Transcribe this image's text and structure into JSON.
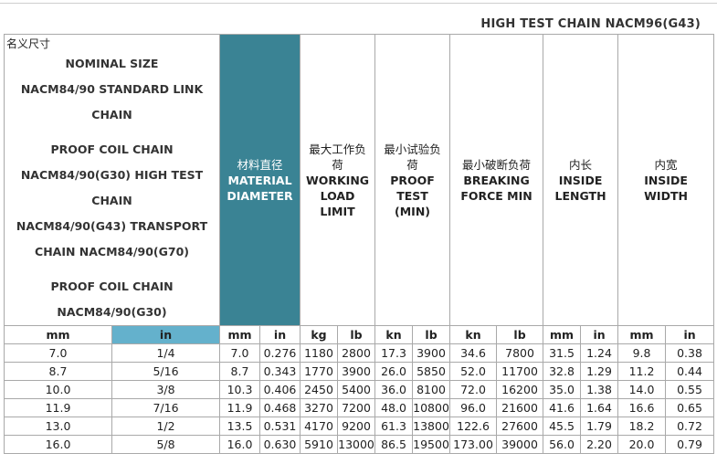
{
  "title": "HIGH TEST CHAIN NACM96(G43)",
  "name_header": {
    "cn": "名义尺寸",
    "lines": [
      "NOMINAL SIZE",
      "NACM84/90 STANDARD LINK",
      "CHAIN",
      "",
      "PROOF COIL CHAIN",
      "NACM84/90(G30)   HIGH TEST",
      "CHAIN",
      "NACM84/90(G43)   TRANSPORT",
      "CHAIN NACM84/90(G70)",
      "",
      "PROOF COIL CHAIN",
      "NACM84/90(G30)"
    ]
  },
  "columns": [
    {
      "cn": "材料直径",
      "en": [
        "MATERIAL",
        "DIAMETER"
      ]
    },
    {
      "cn": "最大工作负荷",
      "en": [
        "WORKING",
        "LOAD",
        "LIMIT"
      ]
    },
    {
      "cn": "最小试验负荷",
      "en": [
        "PROOF",
        "TEST",
        "(MIN)"
      ]
    },
    {
      "cn": "最小破断负荷",
      "en": [
        "BREAKING",
        "FORCE MIN"
      ]
    },
    {
      "cn": "内长",
      "en": [
        "INSIDE",
        "LENGTH"
      ]
    },
    {
      "cn": "内宽",
      "en": [
        "INSIDE",
        "WIDTH"
      ]
    }
  ],
  "units": [
    "mm",
    "in",
    "mm",
    "in",
    "kg",
    "lb",
    "kn",
    "lb",
    "kn",
    "lb",
    "mm",
    "in",
    "mm",
    "in"
  ],
  "rows": [
    [
      "7.0",
      "1/4",
      "7.0",
      "0.276",
      "1180",
      "2800",
      "17.3",
      "3900",
      "34.6",
      "7800",
      "31.5",
      "1.24",
      "9.8",
      "0.38"
    ],
    [
      "8.7",
      "5/16",
      "8.7",
      "0.343",
      "1770",
      "3900",
      "26.0",
      "5850",
      "52.0",
      "11700",
      "32.8",
      "1.29",
      "11.2",
      "0.44"
    ],
    [
      "10.0",
      "3/8",
      "10.3",
      "0.406",
      "2450",
      "5400",
      "36.0",
      "8100",
      "72.0",
      "16200",
      "35.0",
      "1.38",
      "14.0",
      "0.55"
    ],
    [
      "11.9",
      "7/16",
      "11.9",
      "0.468",
      "3270",
      "7200",
      "48.0",
      "10800",
      "96.0",
      "21600",
      "41.6",
      "1.64",
      "16.6",
      "0.65"
    ],
    [
      "13.0",
      "1/2",
      "13.5",
      "0.531",
      "4170",
      "9200",
      "61.3",
      "13800",
      "122.6",
      "27600",
      "45.5",
      "1.79",
      "18.2",
      "0.72"
    ],
    [
      "16.0",
      "5/8",
      "16.0",
      "0.630",
      "5910",
      "13000",
      "86.5",
      "19500",
      "173.00",
      "39000",
      "56.0",
      "2.20",
      "20.0",
      "0.79"
    ]
  ],
  "colors": {
    "header_teal": "#3a8394",
    "unit_in_blue": "#64b1cc"
  }
}
